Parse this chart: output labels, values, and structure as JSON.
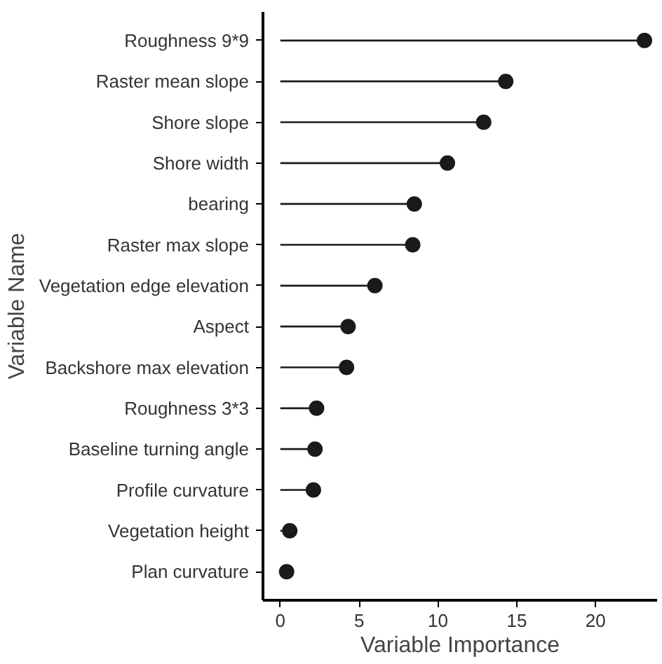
{
  "chart_data": {
    "type": "lollipop",
    "orientation": "horizontal",
    "xlabel": "Variable Importance",
    "ylabel": "Variable Name",
    "categories": [
      "Roughness 9*9",
      "Raster mean slope",
      "Shore slope",
      "Shore width",
      "bearing",
      "Raster max slope",
      "Vegetation edge elevation",
      "Aspect",
      "Backshore max elevation",
      "Roughness 3*3",
      "Baseline turning angle",
      "Profile curvature",
      "Vegetation height",
      "Plan curvature"
    ],
    "values": [
      23.1,
      14.3,
      12.9,
      10.6,
      8.5,
      8.4,
      6.0,
      4.3,
      4.2,
      2.3,
      2.2,
      2.1,
      0.6,
      0.4
    ],
    "color": "#1a1a1a",
    "xlim": [
      -1.1,
      23.9
    ],
    "xticks": [
      0,
      5,
      10,
      15,
      20
    ],
    "grid": false,
    "marker": "circle"
  }
}
